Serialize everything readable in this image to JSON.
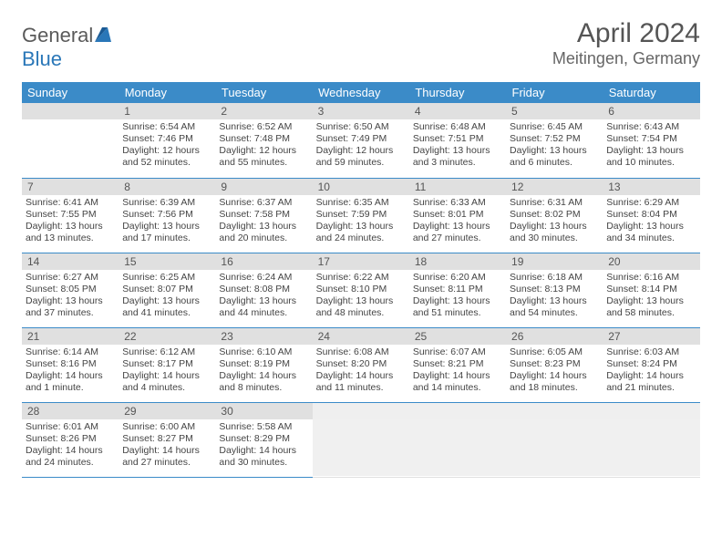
{
  "logo": {
    "general": "General",
    "blue": "Blue"
  },
  "title": "April 2024",
  "location": "Meitingen, Germany",
  "colors": {
    "header_bg": "#3b8bc8",
    "header_text": "#ffffff",
    "daynum_bg": "#e0e0e0",
    "daynum_text": "#555555",
    "border": "#3b8bc8",
    "body_text": "#444444",
    "title_text": "#555555"
  },
  "week_days": [
    "Sunday",
    "Monday",
    "Tuesday",
    "Wednesday",
    "Thursday",
    "Friday",
    "Saturday"
  ],
  "weeks": [
    [
      {
        "day": "",
        "lines": []
      },
      {
        "day": "1",
        "lines": [
          "Sunrise: 6:54 AM",
          "Sunset: 7:46 PM",
          "Daylight: 12 hours",
          "and 52 minutes."
        ]
      },
      {
        "day": "2",
        "lines": [
          "Sunrise: 6:52 AM",
          "Sunset: 7:48 PM",
          "Daylight: 12 hours",
          "and 55 minutes."
        ]
      },
      {
        "day": "3",
        "lines": [
          "Sunrise: 6:50 AM",
          "Sunset: 7:49 PM",
          "Daylight: 12 hours",
          "and 59 minutes."
        ]
      },
      {
        "day": "4",
        "lines": [
          "Sunrise: 6:48 AM",
          "Sunset: 7:51 PM",
          "Daylight: 13 hours",
          "and 3 minutes."
        ]
      },
      {
        "day": "5",
        "lines": [
          "Sunrise: 6:45 AM",
          "Sunset: 7:52 PM",
          "Daylight: 13 hours",
          "and 6 minutes."
        ]
      },
      {
        "day": "6",
        "lines": [
          "Sunrise: 6:43 AM",
          "Sunset: 7:54 PM",
          "Daylight: 13 hours",
          "and 10 minutes."
        ]
      }
    ],
    [
      {
        "day": "7",
        "lines": [
          "Sunrise: 6:41 AM",
          "Sunset: 7:55 PM",
          "Daylight: 13 hours",
          "and 13 minutes."
        ]
      },
      {
        "day": "8",
        "lines": [
          "Sunrise: 6:39 AM",
          "Sunset: 7:56 PM",
          "Daylight: 13 hours",
          "and 17 minutes."
        ]
      },
      {
        "day": "9",
        "lines": [
          "Sunrise: 6:37 AM",
          "Sunset: 7:58 PM",
          "Daylight: 13 hours",
          "and 20 minutes."
        ]
      },
      {
        "day": "10",
        "lines": [
          "Sunrise: 6:35 AM",
          "Sunset: 7:59 PM",
          "Daylight: 13 hours",
          "and 24 minutes."
        ]
      },
      {
        "day": "11",
        "lines": [
          "Sunrise: 6:33 AM",
          "Sunset: 8:01 PM",
          "Daylight: 13 hours",
          "and 27 minutes."
        ]
      },
      {
        "day": "12",
        "lines": [
          "Sunrise: 6:31 AM",
          "Sunset: 8:02 PM",
          "Daylight: 13 hours",
          "and 30 minutes."
        ]
      },
      {
        "day": "13",
        "lines": [
          "Sunrise: 6:29 AM",
          "Sunset: 8:04 PM",
          "Daylight: 13 hours",
          "and 34 minutes."
        ]
      }
    ],
    [
      {
        "day": "14",
        "lines": [
          "Sunrise: 6:27 AM",
          "Sunset: 8:05 PM",
          "Daylight: 13 hours",
          "and 37 minutes."
        ]
      },
      {
        "day": "15",
        "lines": [
          "Sunrise: 6:25 AM",
          "Sunset: 8:07 PM",
          "Daylight: 13 hours",
          "and 41 minutes."
        ]
      },
      {
        "day": "16",
        "lines": [
          "Sunrise: 6:24 AM",
          "Sunset: 8:08 PM",
          "Daylight: 13 hours",
          "and 44 minutes."
        ]
      },
      {
        "day": "17",
        "lines": [
          "Sunrise: 6:22 AM",
          "Sunset: 8:10 PM",
          "Daylight: 13 hours",
          "and 48 minutes."
        ]
      },
      {
        "day": "18",
        "lines": [
          "Sunrise: 6:20 AM",
          "Sunset: 8:11 PM",
          "Daylight: 13 hours",
          "and 51 minutes."
        ]
      },
      {
        "day": "19",
        "lines": [
          "Sunrise: 6:18 AM",
          "Sunset: 8:13 PM",
          "Daylight: 13 hours",
          "and 54 minutes."
        ]
      },
      {
        "day": "20",
        "lines": [
          "Sunrise: 6:16 AM",
          "Sunset: 8:14 PM",
          "Daylight: 13 hours",
          "and 58 minutes."
        ]
      }
    ],
    [
      {
        "day": "21",
        "lines": [
          "Sunrise: 6:14 AM",
          "Sunset: 8:16 PM",
          "Daylight: 14 hours",
          "and 1 minute."
        ]
      },
      {
        "day": "22",
        "lines": [
          "Sunrise: 6:12 AM",
          "Sunset: 8:17 PM",
          "Daylight: 14 hours",
          "and 4 minutes."
        ]
      },
      {
        "day": "23",
        "lines": [
          "Sunrise: 6:10 AM",
          "Sunset: 8:19 PM",
          "Daylight: 14 hours",
          "and 8 minutes."
        ]
      },
      {
        "day": "24",
        "lines": [
          "Sunrise: 6:08 AM",
          "Sunset: 8:20 PM",
          "Daylight: 14 hours",
          "and 11 minutes."
        ]
      },
      {
        "day": "25",
        "lines": [
          "Sunrise: 6:07 AM",
          "Sunset: 8:21 PM",
          "Daylight: 14 hours",
          "and 14 minutes."
        ]
      },
      {
        "day": "26",
        "lines": [
          "Sunrise: 6:05 AM",
          "Sunset: 8:23 PM",
          "Daylight: 14 hours",
          "and 18 minutes."
        ]
      },
      {
        "day": "27",
        "lines": [
          "Sunrise: 6:03 AM",
          "Sunset: 8:24 PM",
          "Daylight: 14 hours",
          "and 21 minutes."
        ]
      }
    ],
    [
      {
        "day": "28",
        "lines": [
          "Sunrise: 6:01 AM",
          "Sunset: 8:26 PM",
          "Daylight: 14 hours",
          "and 24 minutes."
        ]
      },
      {
        "day": "29",
        "lines": [
          "Sunrise: 6:00 AM",
          "Sunset: 8:27 PM",
          "Daylight: 14 hours",
          "and 27 minutes."
        ]
      },
      {
        "day": "30",
        "lines": [
          "Sunrise: 5:58 AM",
          "Sunset: 8:29 PM",
          "Daylight: 14 hours",
          "and 30 minutes."
        ]
      },
      {
        "day": "",
        "lines": [],
        "trailing": true
      },
      {
        "day": "",
        "lines": [],
        "trailing": true
      },
      {
        "day": "",
        "lines": [],
        "trailing": true
      },
      {
        "day": "",
        "lines": [],
        "trailing": true
      }
    ]
  ]
}
